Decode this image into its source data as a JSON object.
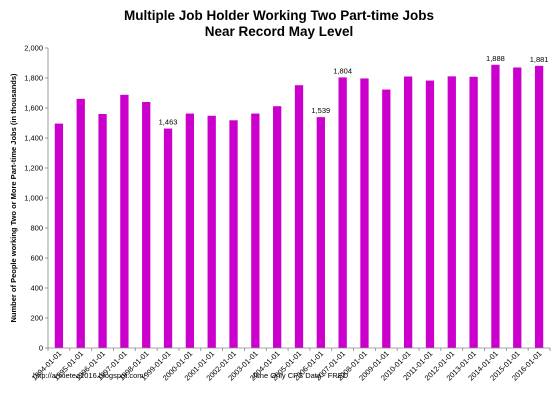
{
  "chart_data": {
    "type": "bar",
    "title_lines": [
      "Multiple Job Holder Working Two Part-time Jobs",
      "Near Record May Level"
    ],
    "ylabel": "Number of People working Two or More Part-time Jobs (in thousands)",
    "xlabel": "",
    "ylim": [
      0,
      2000
    ],
    "yticks": [
      "0",
      "200",
      "400",
      "600",
      "800",
      "1,000",
      "1,200",
      "1,400",
      "1,600",
      "1,800",
      "2,000"
    ],
    "grid": false,
    "legend": "none",
    "bar_color": "#cc00cc",
    "categories": [
      "1994-01-01",
      "1995-01-01",
      "1996-01-01",
      "1997-01-01",
      "1998-01-01",
      "1999-01-01",
      "2000-01-01",
      "2001-01-01",
      "2002-01-01",
      "2003-01-01",
      "2004-01-01",
      "2005-01-01",
      "2006-01-01",
      "2007-01-01",
      "2008-01-01",
      "2009-01-01",
      "2010-01-01",
      "2011-01-01",
      "2012-01-01",
      "2013-01-01",
      "2014-01-01",
      "2015-01-01",
      "2016-01-01"
    ],
    "values": [
      1496,
      1661,
      1560,
      1688,
      1640,
      1463,
      1563,
      1548,
      1518,
      1563,
      1612,
      1752,
      1539,
      1804,
      1797,
      1723,
      1810,
      1783,
      1811,
      1808,
      1888,
      1870,
      1881
    ],
    "data_labels": [
      {
        "category": "1999-01-01",
        "text": "1,463"
      },
      {
        "category": "2006-01-01",
        "text": "1,539"
      },
      {
        "category": "2007-01-01",
        "text": "1,804"
      },
      {
        "category": "2014-01-01",
        "text": "1,888"
      },
      {
        "category": "2016-01-01",
        "text": "1,881"
      }
    ]
  },
  "footer": {
    "left": "http://anxietea2016.blogspot.com/",
    "center": "June Only CPS Data - FRED"
  }
}
